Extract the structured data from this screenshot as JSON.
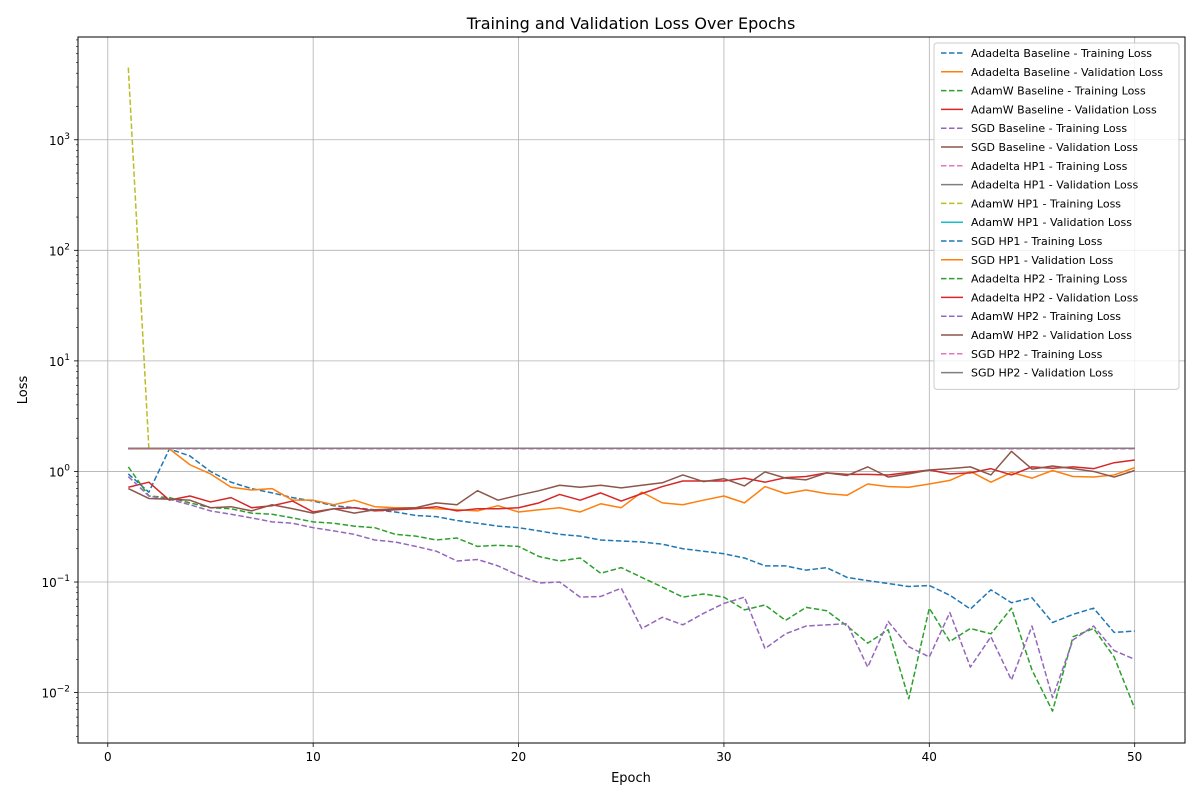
{
  "chart_data": {
    "type": "line",
    "title": "Training and Validation Loss Over Epochs",
    "xlabel": "Epoch",
    "ylabel": "Loss",
    "yscale": "log",
    "xlim": [
      -1.45,
      52.45
    ],
    "ylim": [
      0.0035,
      8500
    ],
    "xticks": [
      0,
      10,
      20,
      30,
      40,
      50
    ],
    "yticks": [
      {
        "value": 0.01,
        "base": "10",
        "exp": "−2"
      },
      {
        "value": 0.1,
        "base": "10",
        "exp": "−1"
      },
      {
        "value": 1,
        "base": "10",
        "exp": "0"
      },
      {
        "value": 10,
        "base": "10",
        "exp": "1"
      },
      {
        "value": 100,
        "base": "10",
        "exp": "2"
      },
      {
        "value": 1000,
        "base": "10",
        "exp": "3"
      }
    ],
    "grid": true,
    "legend_position": "top-right",
    "x": [
      1,
      2,
      3,
      4,
      5,
      6,
      7,
      8,
      9,
      10,
      11,
      12,
      13,
      14,
      15,
      16,
      17,
      18,
      19,
      20,
      21,
      22,
      23,
      24,
      25,
      26,
      27,
      28,
      29,
      30,
      31,
      32,
      33,
      34,
      35,
      36,
      37,
      38,
      39,
      40,
      41,
      42,
      43,
      44,
      45,
      46,
      47,
      48,
      49,
      50
    ],
    "series": [
      {
        "name": "Adadelta Baseline - Training Loss",
        "color": "#1f77b4",
        "dash": true,
        "values": [
          0.95,
          0.65,
          1.6,
          1.38,
          1.0,
          0.8,
          0.7,
          0.64,
          0.58,
          0.54,
          0.49,
          0.47,
          0.45,
          0.43,
          0.4,
          0.39,
          0.36,
          0.34,
          0.32,
          0.31,
          0.29,
          0.27,
          0.26,
          0.24,
          0.235,
          0.23,
          0.22,
          0.2,
          0.19,
          0.18,
          0.165,
          0.14,
          0.14,
          0.128,
          0.135,
          0.11,
          0.103,
          0.097,
          0.091,
          0.093,
          0.076,
          0.057,
          0.085,
          0.065,
          0.072,
          0.043,
          0.051,
          0.058,
          0.035,
          0.036
        ]
      },
      {
        "name": "Adadelta Baseline - Validation Loss",
        "color": "#ff7f0e",
        "dash": false,
        "values": [
          1.6,
          1.6,
          1.6,
          1.15,
          0.95,
          0.72,
          0.68,
          0.7,
          0.55,
          0.55,
          0.5,
          0.55,
          0.48,
          0.47,
          0.47,
          0.46,
          0.45,
          0.44,
          0.49,
          0.43,
          0.45,
          0.47,
          0.43,
          0.51,
          0.47,
          0.65,
          0.52,
          0.5,
          0.55,
          0.6,
          0.52,
          0.73,
          0.63,
          0.68,
          0.63,
          0.61,
          0.77,
          0.73,
          0.72,
          0.77,
          0.83,
          1.0,
          0.8,
          0.98,
          0.87,
          1.02,
          0.9,
          0.89,
          0.93,
          1.08
        ]
      },
      {
        "name": "AdamW Baseline - Training Loss",
        "color": "#2ca02c",
        "dash": true,
        "values": [
          1.1,
          0.6,
          0.58,
          0.52,
          0.47,
          0.46,
          0.42,
          0.41,
          0.38,
          0.35,
          0.34,
          0.32,
          0.31,
          0.27,
          0.26,
          0.24,
          0.25,
          0.21,
          0.215,
          0.21,
          0.17,
          0.155,
          0.165,
          0.12,
          0.135,
          0.11,
          0.09,
          0.073,
          0.078,
          0.073,
          0.056,
          0.062,
          0.045,
          0.059,
          0.055,
          0.04,
          0.028,
          0.037,
          0.0088,
          0.058,
          0.029,
          0.038,
          0.034,
          0.058,
          0.016,
          0.0068,
          0.032,
          0.038,
          0.021,
          0.0072
        ]
      },
      {
        "name": "AdamW Baseline - Validation Loss",
        "color": "#d62728",
        "dash": false,
        "values": [
          0.72,
          0.8,
          0.55,
          0.6,
          0.53,
          0.58,
          0.47,
          0.49,
          0.54,
          0.43,
          0.46,
          0.47,
          0.44,
          0.45,
          0.46,
          0.48,
          0.44,
          0.46,
          0.46,
          0.47,
          0.52,
          0.62,
          0.55,
          0.64,
          0.54,
          0.63,
          0.73,
          0.82,
          0.82,
          0.82,
          0.87,
          0.8,
          0.88,
          0.9,
          0.97,
          0.94,
          0.94,
          0.93,
          0.98,
          1.03,
          0.95,
          0.97,
          1.06,
          0.93,
          1.1,
          1.07,
          1.1,
          1.06,
          1.2,
          1.27
        ]
      },
      {
        "name": "SGD Baseline - Training Loss",
        "color": "#9467bd",
        "dash": true,
        "values": [
          0.9,
          0.6,
          0.56,
          0.5,
          0.44,
          0.41,
          0.38,
          0.35,
          0.34,
          0.31,
          0.29,
          0.27,
          0.24,
          0.23,
          0.21,
          0.19,
          0.155,
          0.16,
          0.14,
          0.115,
          0.098,
          0.1,
          0.073,
          0.074,
          0.088,
          0.038,
          0.048,
          0.041,
          0.052,
          0.064,
          0.073,
          0.025,
          0.034,
          0.04,
          0.041,
          0.042,
          0.017,
          0.044,
          0.026,
          0.021,
          0.053,
          0.017,
          0.032,
          0.013,
          0.04,
          0.009,
          0.03,
          0.04,
          0.024,
          0.02
        ]
      },
      {
        "name": "SGD Baseline - Validation Loss",
        "color": "#8c564b",
        "dash": false,
        "values": [
          0.7,
          0.57,
          0.56,
          0.55,
          0.47,
          0.48,
          0.44,
          0.5,
          0.46,
          0.42,
          0.46,
          0.42,
          0.45,
          0.46,
          0.47,
          0.52,
          0.5,
          0.67,
          0.55,
          0.61,
          0.67,
          0.75,
          0.72,
          0.75,
          0.71,
          0.75,
          0.79,
          0.93,
          0.81,
          0.86,
          0.74,
          0.99,
          0.87,
          0.84,
          0.97,
          0.92,
          1.1,
          0.89,
          0.95,
          1.03,
          1.06,
          1.1,
          0.93,
          1.52,
          1.05,
          1.12,
          1.06,
          1.0,
          0.89,
          1.02
        ]
      },
      {
        "name": "Adadelta HP1 - Training Loss",
        "color": "#e377c2",
        "dash": true,
        "values": [
          1.6,
          1.6,
          1.6,
          1.6,
          1.6,
          1.6,
          1.6,
          1.6,
          1.6,
          1.6,
          1.6,
          1.6,
          1.6,
          1.6,
          1.6,
          1.6,
          1.6,
          1.6,
          1.6,
          1.6,
          1.6,
          1.6,
          1.6,
          1.6,
          1.6,
          1.6,
          1.6,
          1.6,
          1.6,
          1.6,
          1.6,
          1.6,
          1.6,
          1.6,
          1.6,
          1.6,
          1.6,
          1.6,
          1.6,
          1.6,
          1.6,
          1.6,
          1.6,
          1.6,
          1.6,
          1.6,
          1.6,
          1.6,
          1.6,
          1.6
        ]
      },
      {
        "name": "Adadelta HP1 - Validation Loss",
        "color": "#7f7f7f",
        "dash": false,
        "values": [
          1.62,
          1.62,
          1.62,
          1.62,
          1.62,
          1.62,
          1.62,
          1.62,
          1.62,
          1.62,
          1.62,
          1.62,
          1.62,
          1.62,
          1.62,
          1.62,
          1.62,
          1.62,
          1.62,
          1.62,
          1.62,
          1.62,
          1.62,
          1.62,
          1.62,
          1.62,
          1.62,
          1.62,
          1.62,
          1.62,
          1.62,
          1.62,
          1.62,
          1.62,
          1.62,
          1.62,
          1.62,
          1.62,
          1.62,
          1.62,
          1.62,
          1.62,
          1.62,
          1.62,
          1.62,
          1.62,
          1.62,
          1.62,
          1.62,
          1.62
        ]
      },
      {
        "name": "AdamW HP1 - Training Loss",
        "color": "#bcbd22",
        "dash": true,
        "values": [
          4500,
          1.62,
          1.62,
          1.62,
          1.62,
          1.62,
          1.62,
          1.62,
          1.62,
          1.62,
          1.62,
          1.62,
          1.62,
          1.62,
          1.62,
          1.62,
          1.62,
          1.62,
          1.62,
          1.62,
          1.62,
          1.62,
          1.62,
          1.62,
          1.62,
          1.62,
          1.62,
          1.62,
          1.62,
          1.62,
          1.62,
          1.62,
          1.62,
          1.62,
          1.62,
          1.62,
          1.62,
          1.62,
          1.62,
          1.62,
          1.62,
          1.62,
          1.62,
          1.62,
          1.62,
          1.62,
          1.62,
          1.62,
          1.62,
          1.62
        ]
      },
      {
        "name": "AdamW HP1 - Validation Loss",
        "color": "#17becf",
        "dash": false,
        "values": [
          1.62,
          1.62,
          1.62,
          1.62,
          1.62,
          1.62,
          1.62,
          1.62,
          1.62,
          1.62,
          1.62,
          1.62,
          1.62,
          1.62,
          1.62,
          1.62,
          1.62,
          1.62,
          1.62,
          1.62,
          1.62,
          1.62,
          1.62,
          1.62,
          1.62,
          1.62,
          1.62,
          1.62,
          1.62,
          1.62,
          1.62,
          1.62,
          1.62,
          1.62,
          1.62,
          1.62,
          1.62,
          1.62,
          1.62,
          1.62,
          1.62,
          1.62,
          1.62,
          1.62,
          1.62,
          1.62,
          1.62,
          1.62,
          1.62,
          1.62
        ]
      },
      {
        "name": "SGD HP1 - Training Loss",
        "color": "#1f77b4",
        "dash": true,
        "values": [
          1.62,
          1.62,
          1.62,
          1.62,
          1.62,
          1.62,
          1.62,
          1.62,
          1.62,
          1.62,
          1.62,
          1.62,
          1.62,
          1.62,
          1.62,
          1.62,
          1.62,
          1.62,
          1.62,
          1.62,
          1.62,
          1.62,
          1.62,
          1.62,
          1.62,
          1.62,
          1.62,
          1.62,
          1.62,
          1.62,
          1.62,
          1.62,
          1.62,
          1.62,
          1.62,
          1.62,
          1.62,
          1.62,
          1.62,
          1.62,
          1.62,
          1.62,
          1.62,
          1.62,
          1.62,
          1.62,
          1.62,
          1.62,
          1.62,
          1.62
        ]
      },
      {
        "name": "SGD HP1 - Validation Loss",
        "color": "#ff7f0e",
        "dash": false,
        "values": [
          1.62,
          1.62,
          1.62,
          1.62,
          1.62,
          1.62,
          1.62,
          1.62,
          1.62,
          1.62,
          1.62,
          1.62,
          1.62,
          1.62,
          1.62,
          1.62,
          1.62,
          1.62,
          1.62,
          1.62,
          1.62,
          1.62,
          1.62,
          1.62,
          1.62,
          1.62,
          1.62,
          1.62,
          1.62,
          1.62,
          1.62,
          1.62,
          1.62,
          1.62,
          1.62,
          1.62,
          1.62,
          1.62,
          1.62,
          1.62,
          1.62,
          1.62,
          1.62,
          1.62,
          1.62,
          1.62,
          1.62,
          1.62,
          1.62,
          1.62
        ]
      },
      {
        "name": "Adadelta HP2 - Training Loss",
        "color": "#2ca02c",
        "dash": true,
        "values": [
          1.62,
          1.62,
          1.62,
          1.62,
          1.62,
          1.62,
          1.62,
          1.62,
          1.62,
          1.62,
          1.62,
          1.62,
          1.62,
          1.62,
          1.62,
          1.62,
          1.62,
          1.62,
          1.62,
          1.62,
          1.62,
          1.62,
          1.62,
          1.62,
          1.62,
          1.62,
          1.62,
          1.62,
          1.62,
          1.62,
          1.62,
          1.62,
          1.62,
          1.62,
          1.62,
          1.62,
          1.62,
          1.62,
          1.62,
          1.62,
          1.62,
          1.62,
          1.62,
          1.62,
          1.62,
          1.62,
          1.62,
          1.62,
          1.62,
          1.62
        ]
      },
      {
        "name": "Adadelta HP2 - Validation Loss",
        "color": "#d62728",
        "dash": false,
        "values": [
          1.62,
          1.62,
          1.62,
          1.62,
          1.62,
          1.62,
          1.62,
          1.62,
          1.62,
          1.62,
          1.62,
          1.62,
          1.62,
          1.62,
          1.62,
          1.62,
          1.62,
          1.62,
          1.62,
          1.62,
          1.62,
          1.62,
          1.62,
          1.62,
          1.62,
          1.62,
          1.62,
          1.62,
          1.62,
          1.62,
          1.62,
          1.62,
          1.62,
          1.62,
          1.62,
          1.62,
          1.62,
          1.62,
          1.62,
          1.62,
          1.62,
          1.62,
          1.62,
          1.62,
          1.62,
          1.62,
          1.62,
          1.62,
          1.62,
          1.62
        ]
      },
      {
        "name": "AdamW HP2 - Training Loss",
        "color": "#9467bd",
        "dash": true,
        "values": [
          1.62,
          1.62,
          1.62,
          1.62,
          1.62,
          1.62,
          1.62,
          1.62,
          1.62,
          1.62,
          1.62,
          1.62,
          1.62,
          1.62,
          1.62,
          1.62,
          1.62,
          1.62,
          1.62,
          1.62,
          1.62,
          1.62,
          1.62,
          1.62,
          1.62,
          1.62,
          1.62,
          1.62,
          1.62,
          1.62,
          1.62,
          1.62,
          1.62,
          1.62,
          1.62,
          1.62,
          1.62,
          1.62,
          1.62,
          1.62,
          1.62,
          1.62,
          1.62,
          1.62,
          1.62,
          1.62,
          1.62,
          1.62,
          1.62,
          1.62
        ]
      },
      {
        "name": "AdamW HP2 - Validation Loss",
        "color": "#8c564b",
        "dash": false,
        "values": [
          1.62,
          1.62,
          1.62,
          1.62,
          1.62,
          1.62,
          1.62,
          1.62,
          1.62,
          1.62,
          1.62,
          1.62,
          1.62,
          1.62,
          1.62,
          1.62,
          1.62,
          1.62,
          1.62,
          1.62,
          1.62,
          1.62,
          1.62,
          1.62,
          1.62,
          1.62,
          1.62,
          1.62,
          1.62,
          1.62,
          1.62,
          1.62,
          1.62,
          1.62,
          1.62,
          1.62,
          1.62,
          1.62,
          1.62,
          1.62,
          1.62,
          1.62,
          1.62,
          1.62,
          1.62,
          1.62,
          1.62,
          1.62,
          1.62,
          1.62
        ]
      },
      {
        "name": "SGD HP2 - Training Loss",
        "color": "#e377c2",
        "dash": true,
        "values": [
          1.62,
          1.62,
          1.62,
          1.62,
          1.62,
          1.62,
          1.62,
          1.62,
          1.62,
          1.62,
          1.62,
          1.62,
          1.62,
          1.62,
          1.62,
          1.62,
          1.62,
          1.62,
          1.62,
          1.62,
          1.62,
          1.62,
          1.62,
          1.62,
          1.62,
          1.62,
          1.62,
          1.62,
          1.62,
          1.62,
          1.62,
          1.62,
          1.62,
          1.62,
          1.62,
          1.62,
          1.62,
          1.62,
          1.62,
          1.62,
          1.62,
          1.62,
          1.62,
          1.62,
          1.62,
          1.62,
          1.62,
          1.62,
          1.62,
          1.62
        ]
      },
      {
        "name": "SGD HP2 - Validation Loss",
        "color": "#7f7f7f",
        "dash": false,
        "values": [
          1.62,
          1.62,
          1.62,
          1.62,
          1.62,
          1.62,
          1.62,
          1.62,
          1.62,
          1.62,
          1.62,
          1.62,
          1.62,
          1.62,
          1.62,
          1.62,
          1.62,
          1.62,
          1.62,
          1.62,
          1.62,
          1.62,
          1.62,
          1.62,
          1.62,
          1.62,
          1.62,
          1.62,
          1.62,
          1.62,
          1.62,
          1.62,
          1.62,
          1.62,
          1.62,
          1.62,
          1.62,
          1.62,
          1.62,
          1.62,
          1.62,
          1.62,
          1.62,
          1.62,
          1.62,
          1.62,
          1.62,
          1.62,
          1.62,
          1.62
        ]
      }
    ]
  }
}
